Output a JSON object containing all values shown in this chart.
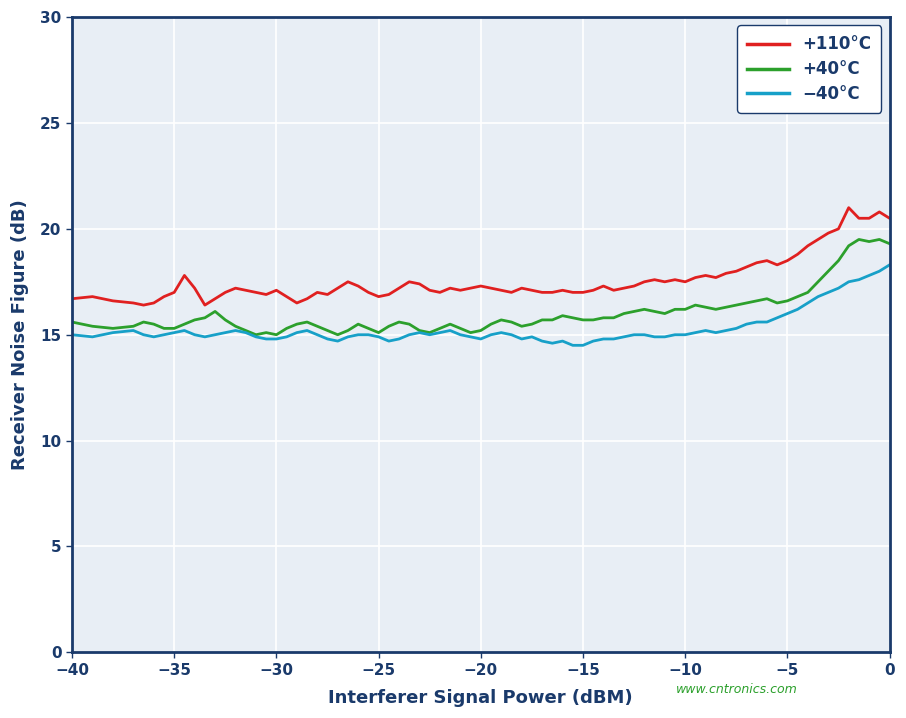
{
  "xlabel": "Interferer Signal Power (dBM)",
  "ylabel": "Receiver Noise Figure (dB)",
  "xlim": [
    -40,
    0
  ],
  "ylim": [
    0,
    30
  ],
  "xticks": [
    -40,
    -35,
    -30,
    -25,
    -20,
    -15,
    -10,
    -5,
    0
  ],
  "yticks": [
    0,
    5,
    10,
    15,
    20,
    25,
    30
  ],
  "watermark": "www.cntronics.com",
  "legend_labels": [
    "+110°C",
    "+40°C",
    "−40°C"
  ],
  "line_colors": [
    "#e02020",
    "#2ca02c",
    "#17a0c8"
  ],
  "background_color": "#ffffff",
  "plot_bg_color": "#e8eef5",
  "grid_color": "#ffffff",
  "axis_color": "#1a3a6b",
  "x_110": [
    -40.0,
    -39.0,
    -38.0,
    -37.0,
    -36.5,
    -36.0,
    -35.5,
    -35.0,
    -34.5,
    -34.0,
    -33.5,
    -33.0,
    -32.5,
    -32.0,
    -31.5,
    -31.0,
    -30.5,
    -30.0,
    -29.5,
    -29.0,
    -28.5,
    -28.0,
    -27.5,
    -27.0,
    -26.5,
    -26.0,
    -25.5,
    -25.0,
    -24.5,
    -24.0,
    -23.5,
    -23.0,
    -22.5,
    -22.0,
    -21.5,
    -21.0,
    -20.5,
    -20.0,
    -19.5,
    -19.0,
    -18.5,
    -18.0,
    -17.5,
    -17.0,
    -16.5,
    -16.0,
    -15.5,
    -15.0,
    -14.5,
    -14.0,
    -13.5,
    -13.0,
    -12.5,
    -12.0,
    -11.5,
    -11.0,
    -10.5,
    -10.0,
    -9.5,
    -9.0,
    -8.5,
    -8.0,
    -7.5,
    -7.0,
    -6.5,
    -6.0,
    -5.5,
    -5.0,
    -4.5,
    -4.0,
    -3.5,
    -3.0,
    -2.5,
    -2.0,
    -1.5,
    -1.0,
    -0.5,
    0.0
  ],
  "y_110": [
    16.7,
    16.8,
    16.6,
    16.5,
    16.4,
    16.5,
    16.8,
    17.0,
    17.8,
    17.2,
    16.4,
    16.7,
    17.0,
    17.2,
    17.1,
    17.0,
    16.9,
    17.1,
    16.8,
    16.5,
    16.7,
    17.0,
    16.9,
    17.2,
    17.5,
    17.3,
    17.0,
    16.8,
    16.9,
    17.2,
    17.5,
    17.4,
    17.1,
    17.0,
    17.2,
    17.1,
    17.2,
    17.3,
    17.2,
    17.1,
    17.0,
    17.2,
    17.1,
    17.0,
    17.0,
    17.1,
    17.0,
    17.0,
    17.1,
    17.3,
    17.1,
    17.2,
    17.3,
    17.5,
    17.6,
    17.5,
    17.6,
    17.5,
    17.7,
    17.8,
    17.7,
    17.9,
    18.0,
    18.2,
    18.4,
    18.5,
    18.3,
    18.5,
    18.8,
    19.2,
    19.5,
    19.8,
    20.0,
    21.0,
    20.5,
    20.5,
    20.8,
    20.5
  ],
  "x_40": [
    -40.0,
    -39.0,
    -38.0,
    -37.0,
    -36.5,
    -36.0,
    -35.5,
    -35.0,
    -34.5,
    -34.0,
    -33.5,
    -33.0,
    -32.5,
    -32.0,
    -31.5,
    -31.0,
    -30.5,
    -30.0,
    -29.5,
    -29.0,
    -28.5,
    -28.0,
    -27.5,
    -27.0,
    -26.5,
    -26.0,
    -25.5,
    -25.0,
    -24.5,
    -24.0,
    -23.5,
    -23.0,
    -22.5,
    -22.0,
    -21.5,
    -21.0,
    -20.5,
    -20.0,
    -19.5,
    -19.0,
    -18.5,
    -18.0,
    -17.5,
    -17.0,
    -16.5,
    -16.0,
    -15.5,
    -15.0,
    -14.5,
    -14.0,
    -13.5,
    -13.0,
    -12.5,
    -12.0,
    -11.5,
    -11.0,
    -10.5,
    -10.0,
    -9.5,
    -9.0,
    -8.5,
    -8.0,
    -7.5,
    -7.0,
    -6.5,
    -6.0,
    -5.5,
    -5.0,
    -4.5,
    -4.0,
    -3.5,
    -3.0,
    -2.5,
    -2.0,
    -1.5,
    -1.0,
    -0.5,
    0.0
  ],
  "y_40": [
    15.6,
    15.4,
    15.3,
    15.4,
    15.6,
    15.5,
    15.3,
    15.3,
    15.5,
    15.7,
    15.8,
    16.1,
    15.7,
    15.4,
    15.2,
    15.0,
    15.1,
    15.0,
    15.3,
    15.5,
    15.6,
    15.4,
    15.2,
    15.0,
    15.2,
    15.5,
    15.3,
    15.1,
    15.4,
    15.6,
    15.5,
    15.2,
    15.1,
    15.3,
    15.5,
    15.3,
    15.1,
    15.2,
    15.5,
    15.7,
    15.6,
    15.4,
    15.5,
    15.7,
    15.7,
    15.9,
    15.8,
    15.7,
    15.7,
    15.8,
    15.8,
    16.0,
    16.1,
    16.2,
    16.1,
    16.0,
    16.2,
    16.2,
    16.4,
    16.3,
    16.2,
    16.3,
    16.4,
    16.5,
    16.6,
    16.7,
    16.5,
    16.6,
    16.8,
    17.0,
    17.5,
    18.0,
    18.5,
    19.2,
    19.5,
    19.4,
    19.5,
    19.3
  ],
  "x_n40": [
    -40.0,
    -39.0,
    -38.0,
    -37.0,
    -36.5,
    -36.0,
    -35.5,
    -35.0,
    -34.5,
    -34.0,
    -33.5,
    -33.0,
    -32.5,
    -32.0,
    -31.5,
    -31.0,
    -30.5,
    -30.0,
    -29.5,
    -29.0,
    -28.5,
    -28.0,
    -27.5,
    -27.0,
    -26.5,
    -26.0,
    -25.5,
    -25.0,
    -24.5,
    -24.0,
    -23.5,
    -23.0,
    -22.5,
    -22.0,
    -21.5,
    -21.0,
    -20.5,
    -20.0,
    -19.5,
    -19.0,
    -18.5,
    -18.0,
    -17.5,
    -17.0,
    -16.5,
    -16.0,
    -15.5,
    -15.0,
    -14.5,
    -14.0,
    -13.5,
    -13.0,
    -12.5,
    -12.0,
    -11.5,
    -11.0,
    -10.5,
    -10.0,
    -9.5,
    -9.0,
    -8.5,
    -8.0,
    -7.5,
    -7.0,
    -6.5,
    -6.0,
    -5.5,
    -5.0,
    -4.5,
    -4.0,
    -3.5,
    -3.0,
    -2.5,
    -2.0,
    -1.5,
    -1.0,
    -0.5,
    0.0
  ],
  "y_n40": [
    15.0,
    14.9,
    15.1,
    15.2,
    15.0,
    14.9,
    15.0,
    15.1,
    15.2,
    15.0,
    14.9,
    15.0,
    15.1,
    15.2,
    15.1,
    14.9,
    14.8,
    14.8,
    14.9,
    15.1,
    15.2,
    15.0,
    14.8,
    14.7,
    14.9,
    15.0,
    15.0,
    14.9,
    14.7,
    14.8,
    15.0,
    15.1,
    15.0,
    15.1,
    15.2,
    15.0,
    14.9,
    14.8,
    15.0,
    15.1,
    15.0,
    14.8,
    14.9,
    14.7,
    14.6,
    14.7,
    14.5,
    14.5,
    14.7,
    14.8,
    14.8,
    14.9,
    15.0,
    15.0,
    14.9,
    14.9,
    15.0,
    15.0,
    15.1,
    15.2,
    15.1,
    15.2,
    15.3,
    15.5,
    15.6,
    15.6,
    15.8,
    16.0,
    16.2,
    16.5,
    16.8,
    17.0,
    17.2,
    17.5,
    17.6,
    17.8,
    18.0,
    18.3
  ]
}
